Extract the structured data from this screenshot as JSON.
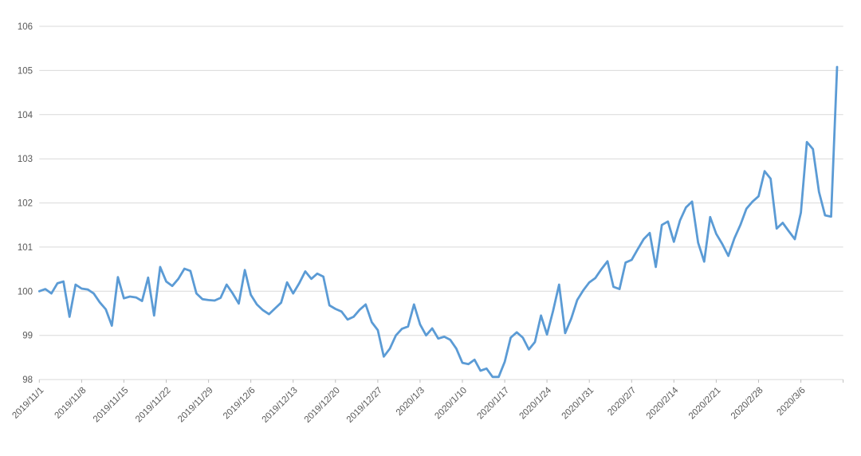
{
  "chart_data": {
    "type": "line",
    "title": "",
    "xlabel": "",
    "ylabel": "",
    "legend": "none",
    "grid": "horizontal",
    "ylim": [
      98,
      106
    ],
    "y_ticks": [
      98,
      99,
      100,
      101,
      102,
      103,
      104,
      105,
      106
    ],
    "x_tick_labels": [
      "2019/11/1",
      "2019/11/8",
      "2019/11/15",
      "2019/11/22",
      "2019/11/29",
      "2019/12/6",
      "2019/12/13",
      "2019/12/20",
      "2019/12/27",
      "2020/1/3",
      "2020/1/10",
      "2020/1/17",
      "2020/1/24",
      "2020/1/31",
      "2020/2/7",
      "2020/2/14",
      "2020/2/21",
      "2020/2/28",
      "2020/3/6"
    ],
    "x_tick_every": 7,
    "line_color": "#5B9BD5",
    "gridline_color": "#D9D9D9",
    "axis_color": "#BFBFBF",
    "label_color": "#595959",
    "x": [
      "2019/11/1",
      "2019/11/2",
      "2019/11/3",
      "2019/11/4",
      "2019/11/5",
      "2019/11/6",
      "2019/11/7",
      "2019/11/8",
      "2019/11/9",
      "2019/11/10",
      "2019/11/11",
      "2019/11/12",
      "2019/11/13",
      "2019/11/14",
      "2019/11/15",
      "2019/11/16",
      "2019/11/17",
      "2019/11/18",
      "2019/11/19",
      "2019/11/20",
      "2019/11/21",
      "2019/11/22",
      "2019/11/23",
      "2019/11/24",
      "2019/11/25",
      "2019/11/26",
      "2019/11/27",
      "2019/11/28",
      "2019/11/29",
      "2019/11/30",
      "2019/12/1",
      "2019/12/2",
      "2019/12/3",
      "2019/12/4",
      "2019/12/5",
      "2019/12/6",
      "2019/12/7",
      "2019/12/8",
      "2019/12/9",
      "2019/12/10",
      "2019/12/11",
      "2019/12/12",
      "2019/12/13",
      "2019/12/14",
      "2019/12/15",
      "2019/12/16",
      "2019/12/17",
      "2019/12/18",
      "2019/12/19",
      "2019/12/20",
      "2019/12/21",
      "2019/12/22",
      "2019/12/23",
      "2019/12/24",
      "2019/12/25",
      "2019/12/26",
      "2019/12/27",
      "2019/12/28",
      "2019/12/29",
      "2019/12/30",
      "2019/12/31",
      "2020/1/1",
      "2020/1/2",
      "2020/1/3",
      "2020/1/4",
      "2020/1/5",
      "2020/1/6",
      "2020/1/7",
      "2020/1/8",
      "2020/1/9",
      "2020/1/10",
      "2020/1/11",
      "2020/1/12",
      "2020/1/13",
      "2020/1/14",
      "2020/1/15",
      "2020/1/16",
      "2020/1/17",
      "2020/1/18",
      "2020/1/19",
      "2020/1/20",
      "2020/1/21",
      "2020/1/22",
      "2020/1/23",
      "2020/1/24",
      "2020/1/25",
      "2020/1/26",
      "2020/1/27",
      "2020/1/28",
      "2020/1/29",
      "2020/1/30",
      "2020/1/31",
      "2020/2/1",
      "2020/2/2",
      "2020/2/3",
      "2020/2/4",
      "2020/2/5",
      "2020/2/6",
      "2020/2/7",
      "2020/2/8",
      "2020/2/9",
      "2020/2/10",
      "2020/2/11",
      "2020/2/12",
      "2020/2/13",
      "2020/2/14",
      "2020/2/15",
      "2020/2/16",
      "2020/2/17",
      "2020/2/18",
      "2020/2/19",
      "2020/2/20",
      "2020/2/21",
      "2020/2/22",
      "2020/2/23",
      "2020/2/24",
      "2020/2/25",
      "2020/2/26",
      "2020/2/27",
      "2020/2/28",
      "2020/2/29",
      "2020/3/1",
      "2020/3/2",
      "2020/3/3",
      "2020/3/4",
      "2020/3/5",
      "2020/3/6",
      "2020/3/7",
      "2020/3/8",
      "2020/3/9",
      "2020/3/10",
      "2020/3/11",
      "2020/3/12"
    ],
    "values": [
      100.0,
      100.05,
      99.95,
      100.18,
      100.22,
      99.42,
      100.15,
      100.06,
      100.04,
      99.95,
      99.75,
      99.59,
      99.22,
      100.32,
      99.84,
      99.88,
      99.86,
      99.78,
      100.31,
      99.45,
      100.55,
      100.22,
      100.12,
      100.28,
      100.51,
      100.46,
      99.95,
      99.82,
      99.8,
      99.79,
      99.85,
      100.15,
      99.95,
      99.72,
      100.48,
      99.92,
      99.7,
      99.57,
      99.48,
      99.61,
      99.74,
      100.2,
      99.95,
      100.18,
      100.45,
      100.28,
      100.4,
      100.33,
      99.68,
      99.6,
      99.54,
      99.36,
      99.42,
      99.58,
      99.7,
      99.3,
      99.12,
      98.52,
      98.7,
      99.0,
      99.15,
      99.2,
      99.7,
      99.25,
      99.0,
      99.16,
      98.93,
      98.97,
      98.9,
      98.7,
      98.38,
      98.35,
      98.45,
      98.2,
      98.25,
      98.06,
      98.06,
      98.4,
      98.95,
      99.07,
      98.95,
      98.68,
      98.85,
      99.45,
      99.02,
      99.55,
      100.15,
      99.05,
      99.38,
      99.8,
      100.02,
      100.2,
      100.3,
      100.5,
      100.68,
      100.1,
      100.05,
      100.65,
      100.71,
      100.95,
      101.18,
      101.32,
      100.55,
      101.5,
      101.58,
      101.12,
      101.6,
      101.9,
      102.03,
      101.1,
      100.67,
      101.68,
      101.3,
      101.07,
      100.8,
      101.2,
      101.5,
      101.87,
      102.03,
      102.15,
      102.72,
      102.55,
      101.42,
      101.55,
      101.36,
      101.18,
      101.78,
      103.38,
      103.22,
      102.25,
      101.72,
      101.69,
      105.08
    ]
  }
}
